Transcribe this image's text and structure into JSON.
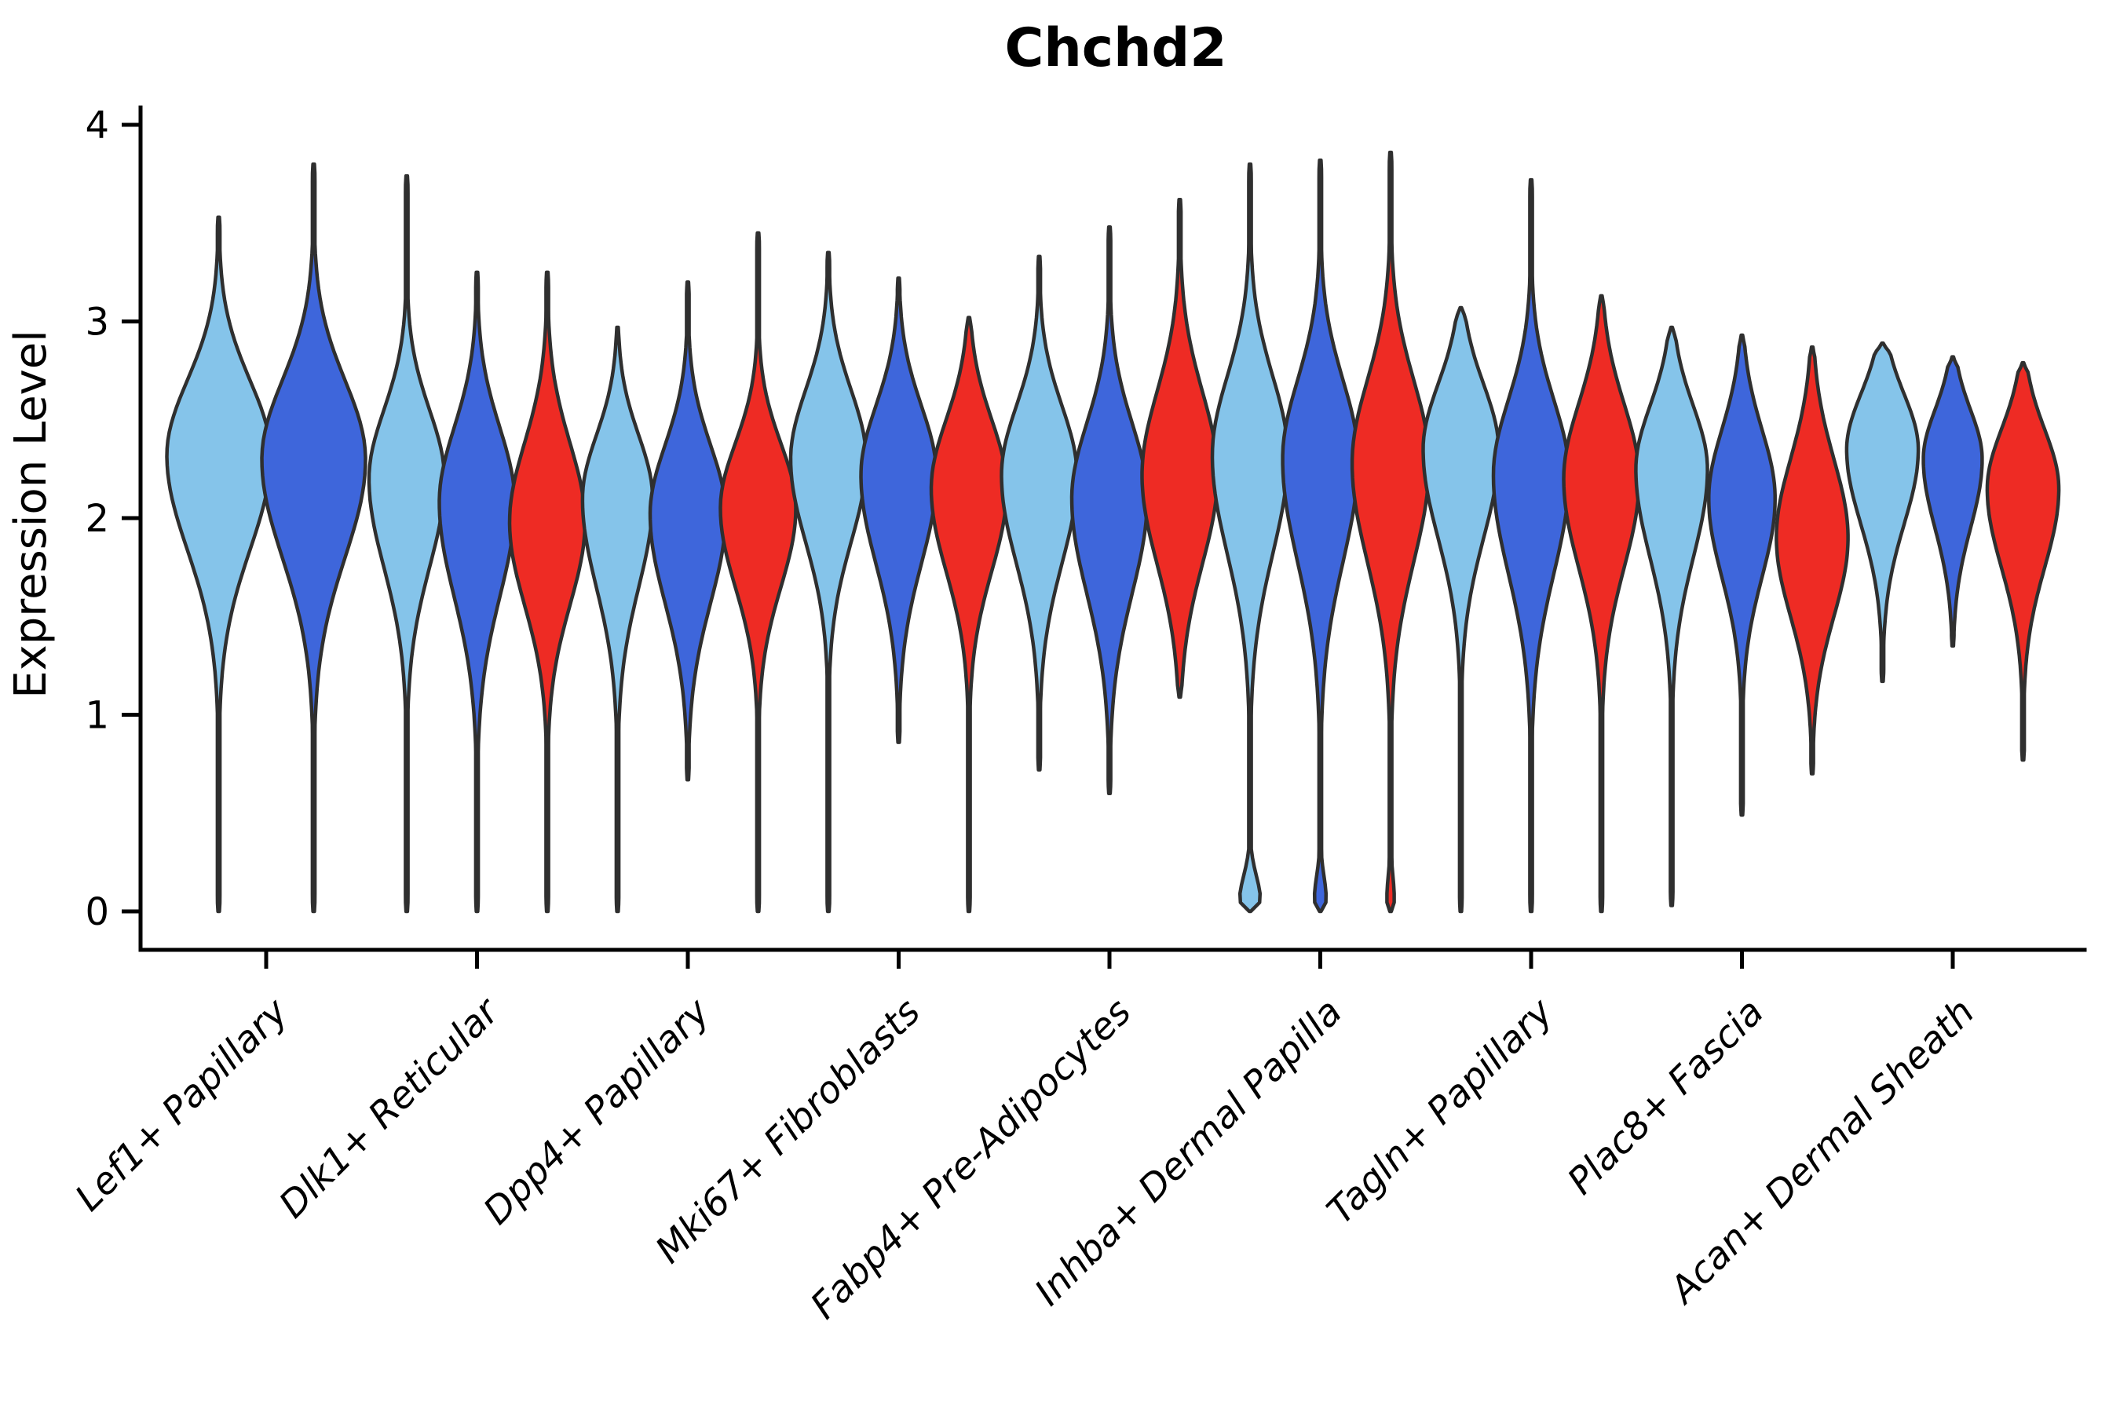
{
  "title": "Chchd2",
  "ylabel": "Expression Level",
  "palette": {
    "skyblue": "#85C4EA",
    "royalblue": "#3E66DB",
    "red": "#EE2B24",
    "outline": "#2F2F2F",
    "axis": "#000000"
  },
  "chart_data": {
    "type": "violin",
    "title": "Chchd2",
    "xlabel": "",
    "ylabel": "Expression Level",
    "ylim": [
      0,
      4
    ],
    "yticks": [
      0,
      1,
      2,
      3,
      4
    ],
    "grid": false,
    "legend": "none",
    "categories": [
      "Lef1+ Papillary",
      "Dlk1+ Reticular",
      "Dpp4+ Papillary",
      "Mki67+ Fibroblasts",
      "Fabp4+ Pre-Adipocytes",
      "Inhba+ Dermal Papilla",
      "Tagln+ Papillary",
      "Plac8+ Fascia",
      "Acan+ Dermal Sheath"
    ],
    "groups": [
      {
        "category": "Lef1+ Papillary",
        "violins": [
          {
            "color": "skyblue",
            "min": 0.0,
            "max": 3.53,
            "mode": 2.32,
            "spread_up": 0.38,
            "spread_down": 0.48,
            "rel_width": 1.0
          },
          {
            "color": "royalblue",
            "min": 0.0,
            "max": 3.8,
            "mode": 2.3,
            "spread_up": 0.4,
            "spread_down": 0.5,
            "rel_width": 1.0
          }
        ]
      },
      {
        "category": "Dlk1+ Reticular",
        "violins": [
          {
            "color": "skyblue",
            "min": 0.0,
            "max": 3.74,
            "mode": 2.2,
            "spread_up": 0.35,
            "spread_down": 0.45,
            "rel_width": 1.0
          },
          {
            "color": "royalblue",
            "min": 0.0,
            "max": 3.25,
            "mode": 2.08,
            "spread_up": 0.38,
            "spread_down": 0.48,
            "rel_width": 1.0
          },
          {
            "color": "red",
            "min": 0.0,
            "max": 3.25,
            "mode": 1.98,
            "spread_up": 0.4,
            "spread_down": 0.42,
            "rel_width": 1.0
          }
        ]
      },
      {
        "category": "Dpp4+ Papillary",
        "violins": [
          {
            "color": "skyblue",
            "min": 0.0,
            "max": 2.97,
            "mode": 2.1,
            "spread_up": 0.32,
            "spread_down": 0.45,
            "rel_width": 0.93
          },
          {
            "color": "royalblue",
            "min": 0.67,
            "max": 3.2,
            "mode": 2.02,
            "spread_up": 0.35,
            "spread_down": 0.45,
            "rel_width": 1.0
          },
          {
            "color": "red",
            "min": 0.0,
            "max": 3.45,
            "mode": 2.05,
            "spread_up": 0.33,
            "spread_down": 0.4,
            "rel_width": 1.0
          }
        ]
      },
      {
        "category": "Mki67+ Fibroblasts",
        "violins": [
          {
            "color": "skyblue",
            "min": 0.0,
            "max": 3.35,
            "mode": 2.3,
            "spread_up": 0.35,
            "spread_down": 0.42,
            "rel_width": 1.0
          },
          {
            "color": "royalblue",
            "min": 0.86,
            "max": 3.22,
            "mode": 2.22,
            "spread_up": 0.35,
            "spread_down": 0.45,
            "rel_width": 1.0
          },
          {
            "color": "red",
            "min": 0.0,
            "max": 3.02,
            "mode": 2.15,
            "spread_up": 0.35,
            "spread_down": 0.42,
            "rel_width": 1.0
          }
        ]
      },
      {
        "category": "Fabp4+ Pre-Adipocytes",
        "violins": [
          {
            "color": "skyblue",
            "min": 0.72,
            "max": 3.33,
            "mode": 2.22,
            "spread_up": 0.35,
            "spread_down": 0.45,
            "rel_width": 1.0
          },
          {
            "color": "royalblue",
            "min": 0.6,
            "max": 3.48,
            "mode": 2.1,
            "spread_up": 0.38,
            "spread_down": 0.48,
            "rel_width": 1.0
          },
          {
            "color": "red",
            "min": 1.09,
            "max": 3.62,
            "mode": 2.22,
            "spread_up": 0.42,
            "spread_down": 0.45,
            "rel_width": 1.0
          }
        ]
      },
      {
        "category": "Inhba+ Dermal Papilla",
        "violins": [
          {
            "color": "skyblue",
            "min": 0.0,
            "max": 3.8,
            "mode": 2.32,
            "spread_up": 0.4,
            "spread_down": 0.5,
            "rel_width": 1.0,
            "foot": 0.28
          },
          {
            "color": "royalblue",
            "min": 0.0,
            "max": 3.82,
            "mode": 2.3,
            "spread_up": 0.4,
            "spread_down": 0.52,
            "rel_width": 1.0,
            "foot": 0.16
          },
          {
            "color": "red",
            "min": 0.0,
            "max": 3.86,
            "mode": 2.28,
            "spread_up": 0.42,
            "spread_down": 0.5,
            "rel_width": 1.02,
            "foot": 0.1
          }
        ]
      },
      {
        "category": "Tagln+ Papillary",
        "violins": [
          {
            "color": "skyblue",
            "min": 0.0,
            "max": 3.07,
            "mode": 2.35,
            "spread_up": 0.33,
            "spread_down": 0.45,
            "rel_width": 1.0
          },
          {
            "color": "royalblue",
            "min": 0.0,
            "max": 3.72,
            "mode": 2.22,
            "spread_up": 0.38,
            "spread_down": 0.5,
            "rel_width": 1.0
          },
          {
            "color": "red",
            "min": 0.0,
            "max": 3.13,
            "mode": 2.2,
            "spread_up": 0.38,
            "spread_down": 0.45,
            "rel_width": 1.0
          }
        ]
      },
      {
        "category": "Plac8+ Fascia",
        "violins": [
          {
            "color": "skyblue",
            "min": 0.03,
            "max": 2.97,
            "mode": 2.25,
            "spread_up": 0.32,
            "spread_down": 0.45,
            "rel_width": 0.95
          },
          {
            "color": "royalblue",
            "min": 0.49,
            "max": 2.93,
            "mode": 2.1,
            "spread_up": 0.35,
            "spread_down": 0.4,
            "rel_width": 0.88
          },
          {
            "color": "red",
            "min": 0.7,
            "max": 2.87,
            "mode": 1.9,
            "spread_up": 0.4,
            "spread_down": 0.4,
            "rel_width": 0.95
          }
        ]
      },
      {
        "category": "Acan+ Dermal Sheath",
        "violins": [
          {
            "color": "skyblue",
            "min": 1.17,
            "max": 2.89,
            "mode": 2.35,
            "spread_up": 0.28,
            "spread_down": 0.38,
            "rel_width": 0.95
          },
          {
            "color": "royalblue",
            "min": 1.35,
            "max": 2.82,
            "mode": 2.3,
            "spread_up": 0.25,
            "spread_down": 0.35,
            "rel_width": 0.78
          },
          {
            "color": "red",
            "min": 0.77,
            "max": 2.79,
            "mode": 2.15,
            "spread_up": 0.3,
            "spread_down": 0.4,
            "rel_width": 0.95
          }
        ]
      }
    ]
  }
}
